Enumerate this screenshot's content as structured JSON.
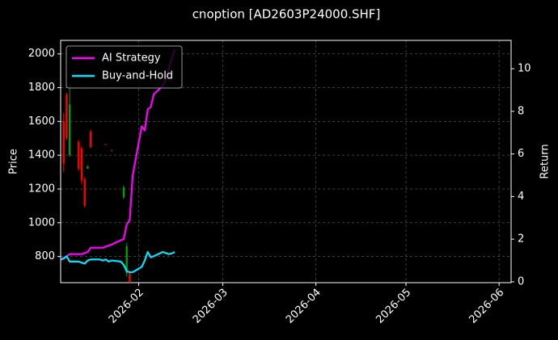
{
  "chart_data": {
    "type": "candlestick",
    "title": "cnoption [AD2603P24000.SHF]",
    "ylabel": "Price",
    "y2label": "Return",
    "xlim": [
      "2026-01-06",
      "2026-06-05"
    ],
    "xticks": [
      {
        "value": "2026-02-01",
        "label": "2026-02"
      },
      {
        "value": "2026-03-01",
        "label": "2026-03"
      },
      {
        "value": "2026-04-01",
        "label": "2026-04"
      },
      {
        "value": "2026-05-01",
        "label": "2026-05"
      },
      {
        "value": "2026-06-01",
        "label": "2026-06"
      }
    ],
    "ylim": [
      645,
      2080
    ],
    "yticks": [
      800,
      1000,
      1200,
      1400,
      1600,
      1800,
      2000
    ],
    "y2lim": [
      -0.04,
      11.33
    ],
    "y2ticks": [
      0,
      2,
      4,
      6,
      8,
      10
    ],
    "grid": true,
    "legend": "upper left",
    "candles": {
      "up_color": "#00a000",
      "down_color": "#ff0000",
      "x": [
        "2026-01-07",
        "2026-01-08",
        "2026-01-09",
        "2026-01-12",
        "2026-01-13",
        "2026-01-14",
        "2026-01-15",
        "2026-01-16",
        "2026-01-21",
        "2026-01-23",
        "2026-01-27",
        "2026-01-28",
        "2026-01-29"
      ],
      "open": [
        1600,
        1760,
        1400,
        1480,
        1440,
        1260,
        1320,
        1540,
        1465,
        1430,
        1150,
        700,
        700
      ],
      "high": [
        1650,
        1770,
        1830,
        1490,
        1450,
        1270,
        1340,
        1550,
        1465,
        1432,
        1220,
        880,
        710
      ],
      "low": [
        1300,
        1490,
        1390,
        1310,
        1230,
        1090,
        1320,
        1440,
        1460,
        1428,
        1140,
        680,
        645
      ],
      "close": [
        1350,
        1500,
        1700,
        1320,
        1250,
        1100,
        1335,
        1450,
        1462,
        1429,
        1210,
        860,
        650
      ]
    },
    "x": [
      "2026-01-06",
      "2026-01-07",
      "2026-01-08",
      "2026-01-09",
      "2026-01-12",
      "2026-01-13",
      "2026-01-14",
      "2026-01-15",
      "2026-01-16",
      "2026-01-19",
      "2026-01-20",
      "2026-01-21",
      "2026-01-22",
      "2026-01-23",
      "2026-01-26",
      "2026-01-27",
      "2026-01-28",
      "2026-01-29",
      "2026-01-30",
      "2026-02-02",
      "2026-02-03",
      "2026-02-04",
      "2026-02-05",
      "2026-02-06",
      "2026-02-09",
      "2026-02-10",
      "2026-02-11",
      "2026-02-12",
      "2026-02-13"
    ],
    "series": [
      {
        "name": "AI Strategy",
        "color": "#ff00ff",
        "axis": "y2",
        "values": [
          1.1,
          1.1,
          1.2,
          1.3,
          1.3,
          1.3,
          1.35,
          1.4,
          1.6,
          1.6,
          1.6,
          1.65,
          1.7,
          1.75,
          1.95,
          2.0,
          2.7,
          2.9,
          5.0,
          7.3,
          7.1,
          8.1,
          8.2,
          8.8,
          9.2,
          9.5,
          10.0,
          10.5,
          10.9
        ]
      },
      {
        "name": "Buy-and-Hold",
        "color": "#00e5ff",
        "axis": "y2",
        "values": [
          1.03,
          1.1,
          1.2,
          0.95,
          0.95,
          0.9,
          0.85,
          1.0,
          1.05,
          1.05,
          1.0,
          1.05,
          0.95,
          1.0,
          0.95,
          0.8,
          0.5,
          0.45,
          0.45,
          0.7,
          1.0,
          1.4,
          1.15,
          1.2,
          1.4,
          1.35,
          1.3,
          1.33,
          1.4
        ]
      }
    ]
  }
}
